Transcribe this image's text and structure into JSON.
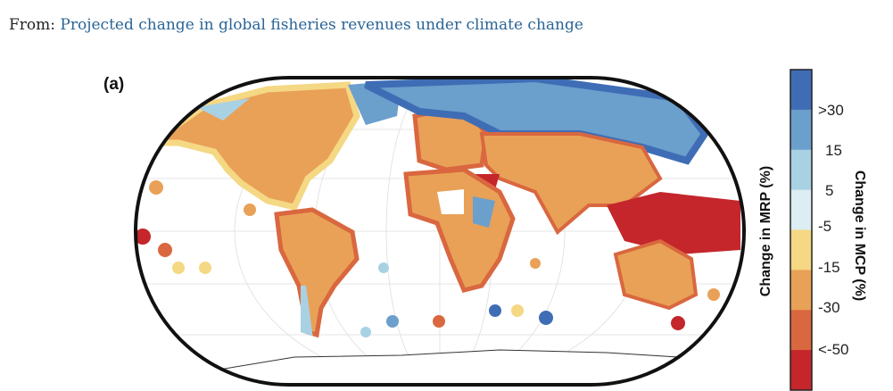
{
  "caption": {
    "prefix": "From: ",
    "link_text": "Projected change in global fisheries revenues under climate change"
  },
  "figure": {
    "panel_label": "(a)",
    "legend": {
      "left_label": "Change in MRP (%)",
      "right_label": "Change in MCP (%)",
      "ticks": [
        ">30",
        "15",
        "5",
        "-5",
        "-15",
        "-30",
        "<-50"
      ],
      "colors": [
        "#3f6db5",
        "#6b9fcc",
        "#a9d1e4",
        "#dcedf4",
        "#f5d884",
        "#e9a157",
        "#d9673f",
        "#c4262b"
      ]
    }
  }
}
